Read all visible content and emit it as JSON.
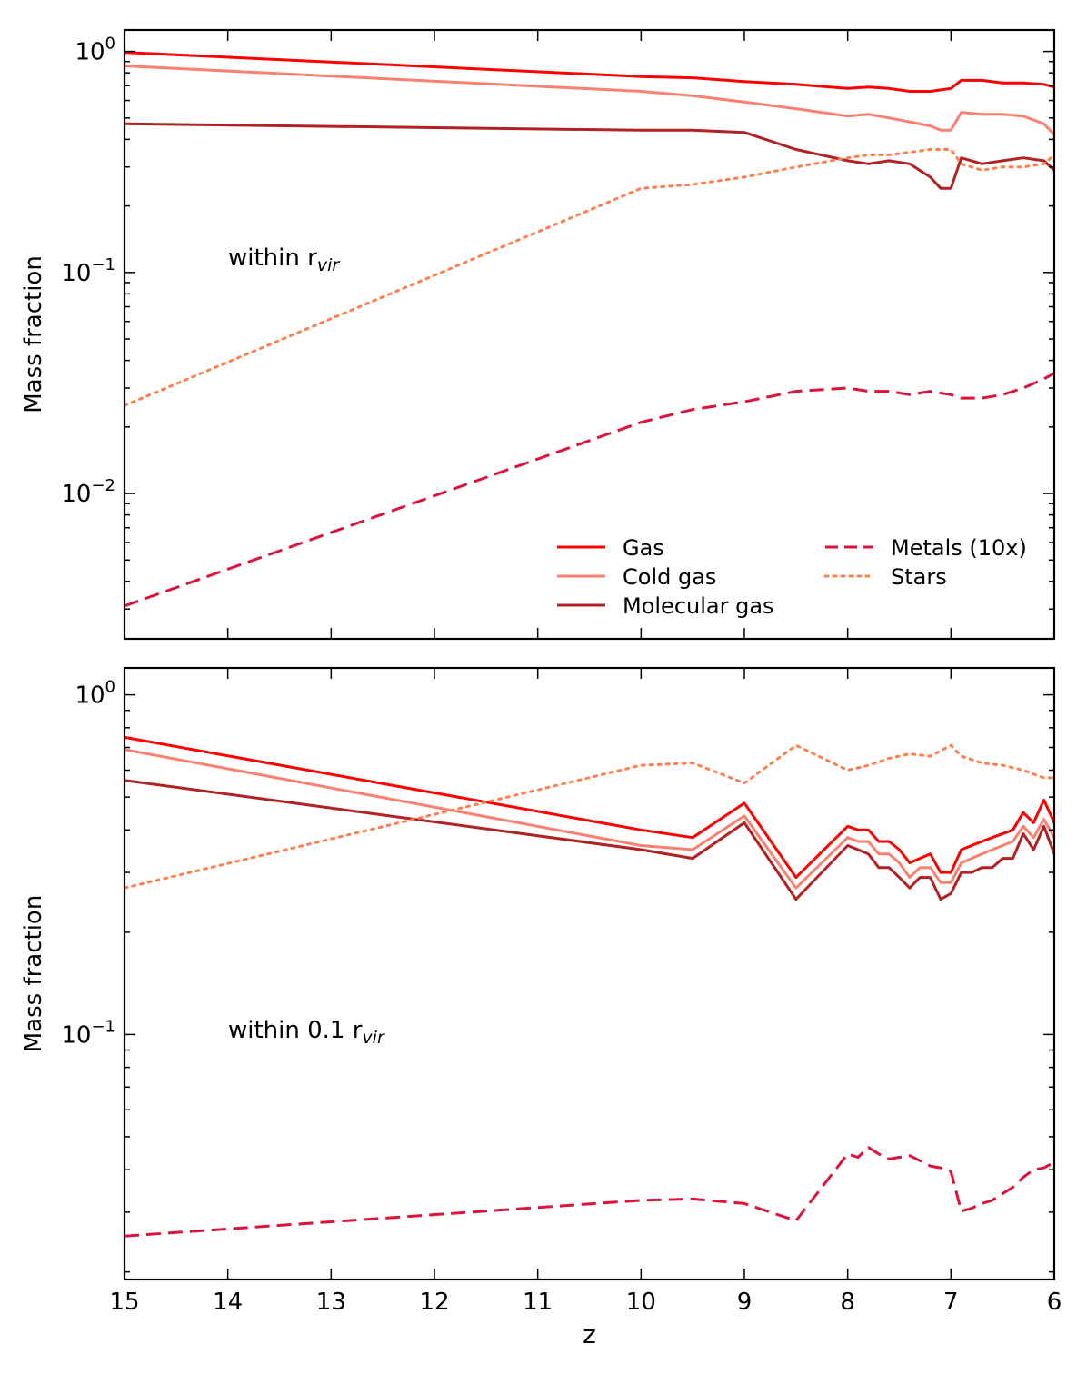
{
  "chart_data": [
    {
      "type": "line",
      "panel": "top",
      "annotation": "within r",
      "annotation_sub": "vir",
      "ylabel": "Mass fraction",
      "yscale": "log",
      "ylim": [
        0.0022,
        1.25
      ],
      "xlim": [
        15,
        6
      ],
      "ytick_labels": [
        {
          "base": "10",
          "exp": "0"
        },
        {
          "base": "10",
          "exp": "−1"
        },
        {
          "base": "10",
          "exp": "−2"
        }
      ],
      "legend_position": "lower-right",
      "series": [
        {
          "name": "Gas",
          "color": "#ff0000",
          "style": "solid",
          "x": [
            15,
            10,
            9.5,
            9,
            8.5,
            8,
            7.8,
            7.6,
            7.4,
            7.2,
            7.1,
            7,
            6.9,
            6.7,
            6.5,
            6.3,
            6.1,
            6
          ],
          "y": [
            0.99,
            0.77,
            0.76,
            0.73,
            0.71,
            0.68,
            0.69,
            0.68,
            0.66,
            0.66,
            0.67,
            0.68,
            0.74,
            0.74,
            0.72,
            0.72,
            0.71,
            0.69
          ]
        },
        {
          "name": "Cold gas",
          "color": "#fa8072",
          "style": "solid",
          "x": [
            15,
            10,
            9.5,
            9,
            8.5,
            8,
            7.8,
            7.6,
            7.4,
            7.2,
            7.1,
            7,
            6.9,
            6.7,
            6.5,
            6.3,
            6.1,
            6
          ],
          "y": [
            0.86,
            0.66,
            0.63,
            0.59,
            0.55,
            0.51,
            0.52,
            0.5,
            0.48,
            0.46,
            0.44,
            0.44,
            0.53,
            0.52,
            0.52,
            0.51,
            0.47,
            0.42
          ]
        },
        {
          "name": "Molecular gas",
          "color": "#b22222",
          "style": "solid",
          "x": [
            15,
            10,
            9.5,
            9,
            8.5,
            8,
            7.8,
            7.6,
            7.4,
            7.2,
            7.1,
            7,
            6.9,
            6.7,
            6.5,
            6.3,
            6.1,
            6
          ],
          "y": [
            0.47,
            0.44,
            0.44,
            0.43,
            0.36,
            0.32,
            0.31,
            0.32,
            0.31,
            0.27,
            0.24,
            0.24,
            0.33,
            0.31,
            0.32,
            0.33,
            0.32,
            0.29
          ]
        },
        {
          "name": "Metals (10x)",
          "color": "#dc143c",
          "style": "dashed",
          "x": [
            15,
            10,
            9.5,
            9,
            8.5,
            8,
            7.8,
            7.6,
            7.4,
            7.2,
            7,
            6.9,
            6.7,
            6.5,
            6.3,
            6.1,
            6
          ],
          "y": [
            0.0031,
            0.021,
            0.024,
            0.026,
            0.029,
            0.03,
            0.029,
            0.029,
            0.028,
            0.029,
            0.028,
            0.027,
            0.027,
            0.028,
            0.03,
            0.033,
            0.035
          ]
        },
        {
          "name": "Stars",
          "color": "#ff7f50",
          "style": "dotted",
          "x": [
            15,
            10,
            9.5,
            9,
            8.5,
            8,
            7.8,
            7.6,
            7.4,
            7.2,
            7,
            6.9,
            6.7,
            6.5,
            6.3,
            6.1,
            6
          ],
          "y": [
            0.025,
            0.24,
            0.25,
            0.27,
            0.3,
            0.33,
            0.34,
            0.34,
            0.35,
            0.36,
            0.36,
            0.31,
            0.29,
            0.3,
            0.3,
            0.31,
            0.34
          ]
        }
      ]
    },
    {
      "type": "line",
      "panel": "bottom",
      "annotation": "within 0.1 r",
      "annotation_sub": "vir",
      "ylabel": "Mass fraction",
      "xlabel": "z",
      "yscale": "log",
      "ylim": [
        0.019,
        1.2
      ],
      "xlim": [
        15,
        6
      ],
      "xticks": [
        15,
        14,
        13,
        12,
        11,
        10,
        9,
        8,
        7,
        6
      ],
      "ytick_labels": [
        {
          "base": "10",
          "exp": "0"
        },
        {
          "base": "10",
          "exp": "−1"
        }
      ],
      "series": [
        {
          "name": "Gas",
          "color": "#ff0000",
          "style": "solid",
          "x": [
            15,
            10,
            9.5,
            9,
            8.5,
            8,
            7.9,
            7.8,
            7.7,
            7.6,
            7.5,
            7.4,
            7.3,
            7.2,
            7.1,
            7,
            6.9,
            6.8,
            6.7,
            6.6,
            6.5,
            6.4,
            6.3,
            6.2,
            6.1,
            6
          ],
          "y": [
            0.75,
            0.4,
            0.38,
            0.48,
            0.29,
            0.41,
            0.4,
            0.4,
            0.37,
            0.37,
            0.35,
            0.32,
            0.33,
            0.34,
            0.3,
            0.3,
            0.35,
            0.36,
            0.37,
            0.38,
            0.39,
            0.4,
            0.45,
            0.42,
            0.49,
            0.42
          ]
        },
        {
          "name": "Cold gas",
          "color": "#fa8072",
          "style": "solid",
          "x": [
            15,
            10,
            9.5,
            9,
            8.5,
            8,
            7.9,
            7.8,
            7.7,
            7.6,
            7.5,
            7.4,
            7.3,
            7.2,
            7.1,
            7,
            6.9,
            6.8,
            6.7,
            6.6,
            6.5,
            6.4,
            6.3,
            6.2,
            6.1,
            6
          ],
          "y": [
            0.69,
            0.36,
            0.35,
            0.44,
            0.27,
            0.38,
            0.37,
            0.37,
            0.34,
            0.34,
            0.32,
            0.29,
            0.31,
            0.31,
            0.28,
            0.28,
            0.32,
            0.33,
            0.34,
            0.35,
            0.36,
            0.37,
            0.41,
            0.38,
            0.43,
            0.38
          ]
        },
        {
          "name": "Molecular gas",
          "color": "#b22222",
          "style": "solid",
          "x": [
            15,
            10,
            9.5,
            9,
            8.5,
            8,
            7.9,
            7.8,
            7.7,
            7.6,
            7.5,
            7.4,
            7.3,
            7.2,
            7.1,
            7,
            6.9,
            6.8,
            6.7,
            6.6,
            6.5,
            6.4,
            6.3,
            6.2,
            6.1,
            6
          ],
          "y": [
            0.56,
            0.35,
            0.33,
            0.42,
            0.25,
            0.36,
            0.35,
            0.34,
            0.31,
            0.31,
            0.29,
            0.27,
            0.29,
            0.29,
            0.25,
            0.26,
            0.3,
            0.3,
            0.31,
            0.31,
            0.33,
            0.33,
            0.39,
            0.35,
            0.41,
            0.34
          ]
        },
        {
          "name": "Metals (10x)",
          "color": "#dc143c",
          "style": "dashed",
          "x": [
            15,
            10,
            9.5,
            9,
            8.5,
            8,
            7.9,
            7.8,
            7.7,
            7.6,
            7.5,
            7.4,
            7.3,
            7.2,
            7.1,
            7,
            6.9,
            6.8,
            6.7,
            6.6,
            6.5,
            6.4,
            6.3,
            6.2,
            6.1,
            6
          ],
          "y": [
            0.0255,
            0.0325,
            0.0328,
            0.0318,
            0.0283,
            0.0445,
            0.0435,
            0.0465,
            0.0445,
            0.043,
            0.0435,
            0.044,
            0.0425,
            0.041,
            0.0405,
            0.0395,
            0.0302,
            0.0308,
            0.0318,
            0.0325,
            0.034,
            0.0355,
            0.038,
            0.04,
            0.0405,
            0.042
          ]
        },
        {
          "name": "Stars",
          "color": "#ff7f50",
          "style": "dotted",
          "x": [
            15,
            10,
            9.5,
            9,
            8.5,
            8,
            7.8,
            7.6,
            7.4,
            7.2,
            7,
            6.9,
            6.7,
            6.5,
            6.3,
            6.1,
            6
          ],
          "y": [
            0.27,
            0.62,
            0.63,
            0.55,
            0.71,
            0.6,
            0.62,
            0.65,
            0.67,
            0.66,
            0.71,
            0.66,
            0.63,
            0.62,
            0.6,
            0.57,
            0.57
          ]
        }
      ]
    }
  ]
}
